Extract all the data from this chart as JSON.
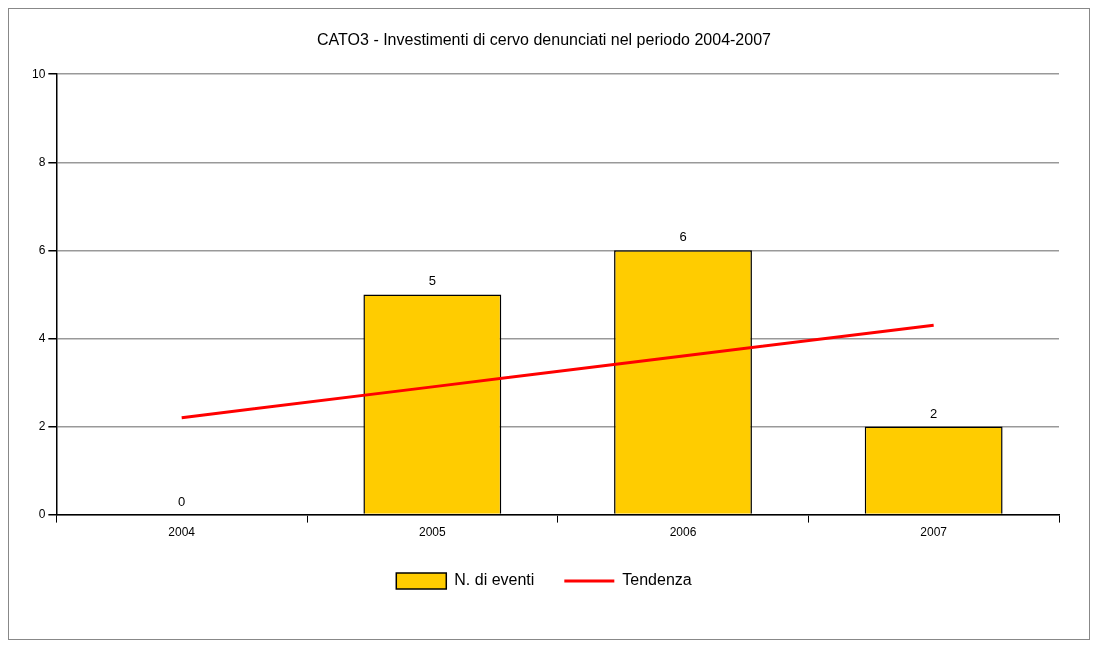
{
  "chart_data": {
    "type": "bar",
    "title": "CATO3 - Investimenti di cervo denunciati nel periodo 2004-2007",
    "categories": [
      "2004",
      "2005",
      "2006",
      "2007"
    ],
    "series": [
      {
        "name": "N. di eventi",
        "color": "#ffcc00",
        "values": [
          0,
          5,
          6,
          2
        ],
        "value_labels": [
          "0",
          "5",
          "6",
          "2"
        ]
      },
      {
        "name": "Tendenza",
        "type": "line",
        "color": "#ff0000",
        "values": [
          2.2,
          2.9,
          3.6,
          4.3
        ],
        "marker": "none"
      }
    ],
    "ylim": [
      0,
      10
    ],
    "yticks": [
      0,
      2,
      4,
      6,
      8,
      10
    ],
    "grid": "y",
    "legend": "bottom"
  }
}
